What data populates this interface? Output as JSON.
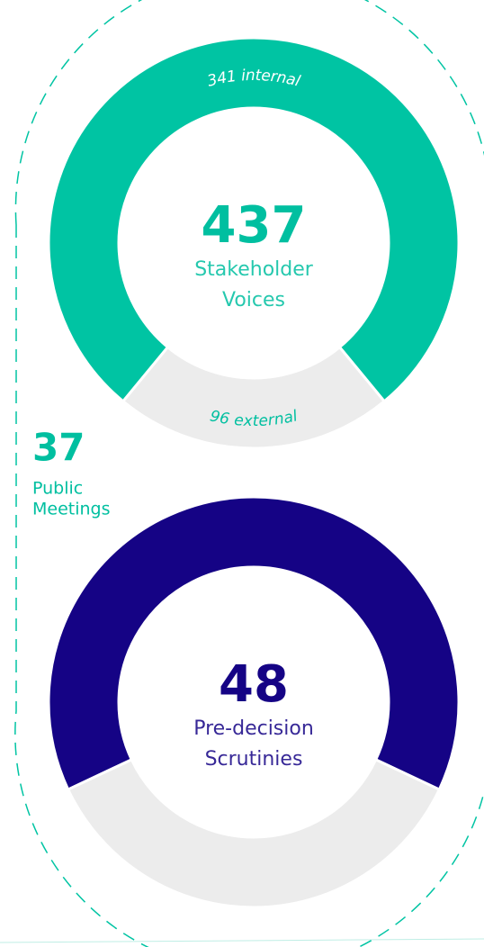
{
  "chart_data": [
    {
      "type": "donut",
      "center_value": 437,
      "center_label": [
        "Stakeholder",
        "Voices"
      ],
      "categories": [
        "internal",
        "external"
      ],
      "values": [
        341,
        96
      ],
      "value_labels": [
        "341 internal",
        "96 external"
      ],
      "colors": [
        "#00c4a3",
        "#ececec"
      ],
      "label_colors": [
        "#ffffff",
        "#00bfa0"
      ],
      "text_color": "#00bfa0"
    },
    {
      "type": "donut",
      "center_value": 48,
      "center_label": [
        "Pre-decision",
        "Scrutinies"
      ],
      "values": [
        64,
        36
      ],
      "colors": [
        "#150385",
        "#ececec"
      ],
      "text_color": "#150385"
    }
  ],
  "stat": {
    "value": 37,
    "label": [
      "Public",
      "Meetings"
    ],
    "color": "#00bfa0"
  }
}
